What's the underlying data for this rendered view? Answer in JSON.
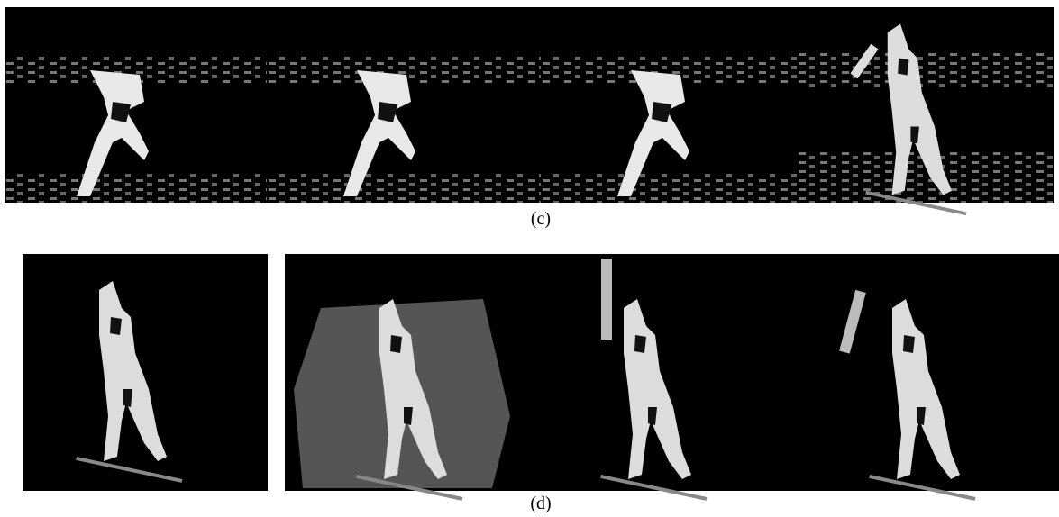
{
  "figure": {
    "rows": [
      {
        "label": "(c)"
      },
      {
        "label": "(d)"
      }
    ]
  }
}
